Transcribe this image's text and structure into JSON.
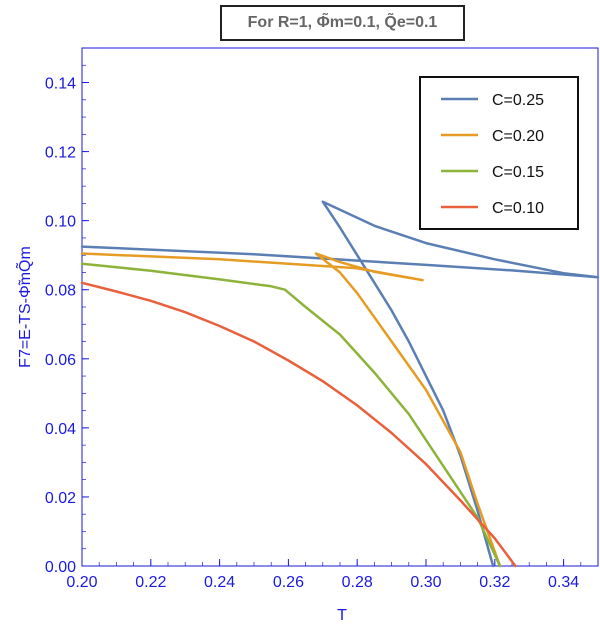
{
  "chart_data": {
    "type": "line",
    "title": "For R=1, Φ̃m=0.1, Q̃e=0.1",
    "xlabel": "T",
    "ylabel": "F7=E-TS-Φ̃mQ̃m",
    "xlim": [
      0.2,
      0.35
    ],
    "ylim": [
      0.0,
      0.15
    ],
    "x_ticks": [
      0.2,
      0.22,
      0.24,
      0.26,
      0.28,
      0.3,
      0.32,
      0.34
    ],
    "x_tick_labels": [
      "0.20",
      "0.22",
      "0.24",
      "0.26",
      "0.28",
      "0.30",
      "0.32",
      "0.34"
    ],
    "y_ticks": [
      0.0,
      0.02,
      0.04,
      0.06,
      0.08,
      0.1,
      0.12,
      0.14
    ],
    "y_tick_labels": [
      "0.00",
      "0.02",
      "0.04",
      "0.06",
      "0.08",
      "0.10",
      "0.12",
      "0.14"
    ],
    "legend_position": "top-right",
    "series": [
      {
        "name": "C=0.25",
        "color": "#5b7fb4",
        "points": [
          [
            0.2,
            0.0925
          ],
          [
            0.25,
            0.0903
          ],
          [
            0.3,
            0.0872
          ],
          [
            0.325,
            0.0856
          ],
          [
            0.35,
            0.0836
          ],
          [
            0.34,
            0.0848
          ],
          [
            0.32,
            0.0888
          ],
          [
            0.3,
            0.0935
          ],
          [
            0.285,
            0.0985
          ],
          [
            0.27,
            0.1055
          ],
          [
            0.275,
            0.098
          ],
          [
            0.28,
            0.09
          ],
          [
            0.285,
            0.082
          ],
          [
            0.29,
            0.074
          ],
          [
            0.295,
            0.065
          ],
          [
            0.3,
            0.055
          ],
          [
            0.305,
            0.045
          ],
          [
            0.31,
            0.032
          ],
          [
            0.315,
            0.016
          ],
          [
            0.3195,
            0.0
          ]
        ]
      },
      {
        "name": "C=0.20",
        "color": "#e69c24",
        "points": [
          [
            0.2,
            0.0905
          ],
          [
            0.24,
            0.0888
          ],
          [
            0.28,
            0.0862
          ],
          [
            0.299,
            0.0828
          ],
          [
            0.285,
            0.0852
          ],
          [
            0.275,
            0.088
          ],
          [
            0.268,
            0.0905
          ],
          [
            0.275,
            0.085
          ],
          [
            0.28,
            0.079
          ],
          [
            0.29,
            0.065
          ],
          [
            0.3,
            0.051
          ],
          [
            0.31,
            0.033
          ],
          [
            0.315,
            0.018
          ],
          [
            0.3215,
            0.0
          ]
        ]
      },
      {
        "name": "C=0.15",
        "color": "#8db33a",
        "points": [
          [
            0.2,
            0.0875
          ],
          [
            0.22,
            0.0855
          ],
          [
            0.24,
            0.083
          ],
          [
            0.255,
            0.081
          ],
          [
            0.259,
            0.08
          ],
          [
            0.265,
            0.075
          ],
          [
            0.275,
            0.067
          ],
          [
            0.285,
            0.056
          ],
          [
            0.295,
            0.044
          ],
          [
            0.305,
            0.029
          ],
          [
            0.315,
            0.014
          ],
          [
            0.3215,
            0.0
          ]
        ]
      },
      {
        "name": "C=0.10",
        "color": "#e8603c",
        "points": [
          [
            0.2,
            0.082
          ],
          [
            0.21,
            0.0795
          ],
          [
            0.22,
            0.0768
          ],
          [
            0.23,
            0.0735
          ],
          [
            0.24,
            0.0695
          ],
          [
            0.25,
            0.065
          ],
          [
            0.26,
            0.0595
          ],
          [
            0.27,
            0.0535
          ],
          [
            0.28,
            0.0465
          ],
          [
            0.29,
            0.0385
          ],
          [
            0.3,
            0.0295
          ],
          [
            0.31,
            0.019
          ],
          [
            0.32,
            0.008
          ],
          [
            0.326,
            0.0
          ]
        ]
      }
    ]
  }
}
